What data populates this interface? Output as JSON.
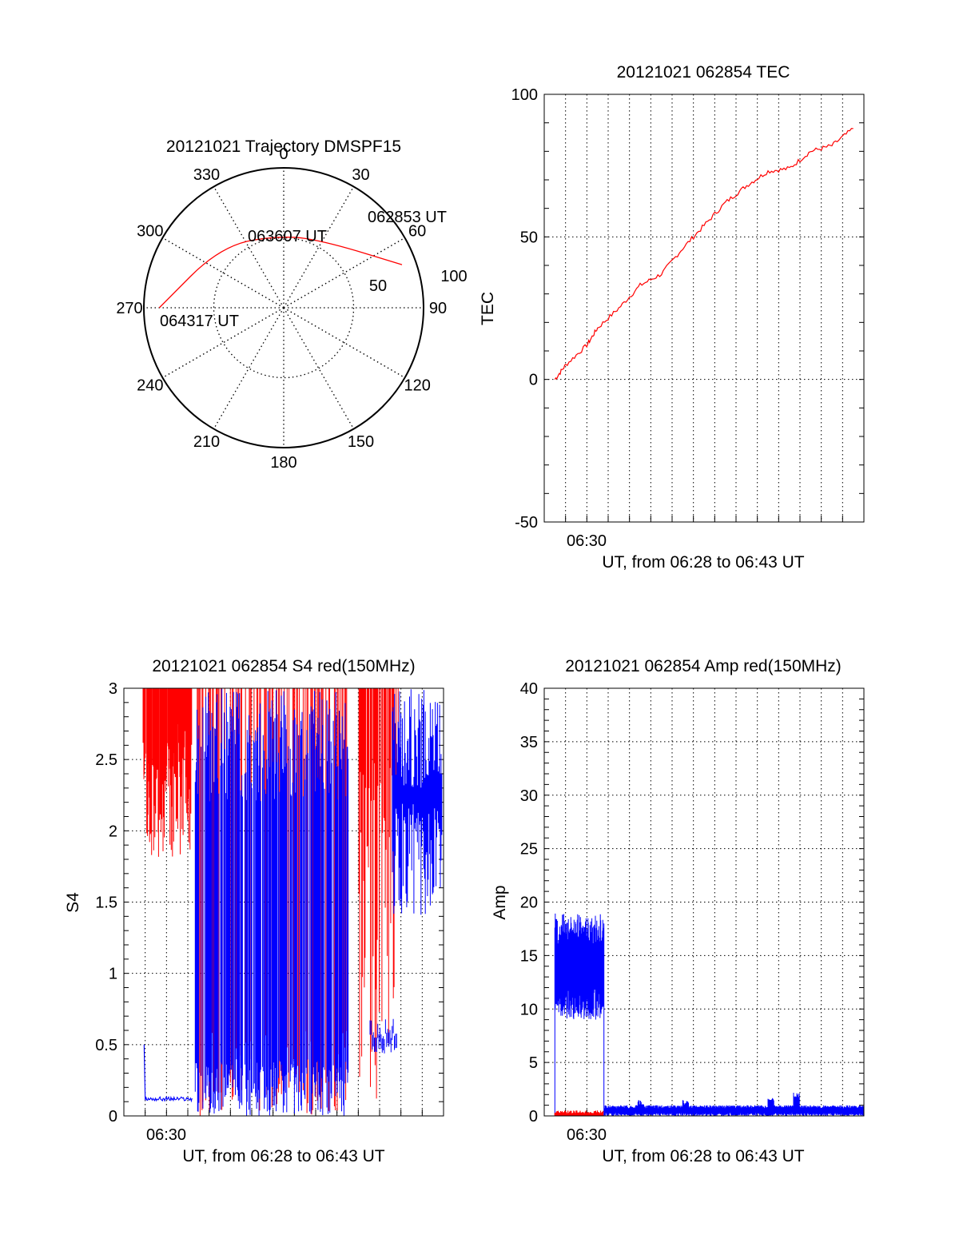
{
  "chart_data": [
    {
      "type": "polar",
      "title": "20121021 Trajectory DMSPF15",
      "azimuth_labels": [
        "0",
        "30",
        "60",
        "90",
        "120",
        "150",
        "180",
        "210",
        "240",
        "270",
        "300",
        "330"
      ],
      "radial_ticks": [
        "50",
        "100"
      ],
      "radial_max": 100,
      "grid": true,
      "series": [
        {
          "color": "#ff0000",
          "points": [
            {
              "az": 70,
              "r": 90
            },
            {
              "az": 35,
              "r": 57
            },
            {
              "az": 0,
              "r": 52
            },
            {
              "az": -45,
              "r": 63
            },
            {
              "az": -90,
              "r": 89
            }
          ]
        }
      ],
      "annotations": [
        {
          "text": "062853 UT",
          "az": 70,
          "r": 90
        },
        {
          "text": "063607 UT",
          "az": 0,
          "r": 52
        },
        {
          "text": "064317 UT",
          "az": -90,
          "r": 89
        }
      ]
    },
    {
      "type": "line",
      "title": "20121021 062854 TEC",
      "xlabel": "UT, from 06:28 to 06:43 UT",
      "ylabel": "TEC",
      "xlim": [
        0,
        15
      ],
      "ylim": [
        -50,
        100
      ],
      "yticks": [
        "-50",
        "0",
        "50",
        "100"
      ],
      "xticks": [
        {
          "x": 1.0,
          "label": "06:30"
        }
      ],
      "grid": true,
      "series": [
        {
          "color": "#ff0000",
          "points": [
            [
              0.5,
              0
            ],
            [
              1.0,
              5
            ],
            [
              2.0,
              12
            ],
            [
              2.5,
              18
            ],
            [
              3.5,
              25
            ],
            [
              4.5,
              33
            ],
            [
              5.5,
              37
            ],
            [
              6.5,
              46
            ],
            [
              7.5,
              54
            ],
            [
              8.5,
              62
            ],
            [
              9.5,
              68
            ],
            [
              10.5,
              73
            ],
            [
              11.5,
              74
            ],
            [
              12.5,
              80
            ],
            [
              13.5,
              82
            ],
            [
              14.5,
              88
            ]
          ]
        }
      ]
    },
    {
      "type": "line",
      "title": "20121021 062854 S4 red(150MHz)",
      "xlabel": "UT, from 06:28 to 06:43 UT",
      "ylabel": "S4",
      "xlim": [
        0,
        15
      ],
      "ylim": [
        0,
        3
      ],
      "yticks": [
        "0",
        "0.5",
        "1",
        "1.5",
        "2",
        "2.5",
        "3"
      ],
      "xticks": [
        {
          "x": 1.0,
          "label": "06:30"
        }
      ],
      "grid": true,
      "series": [
        {
          "name": "",
          "color": "#ff0000"
        },
        {
          "name": "",
          "color": "#0000ff"
        }
      ]
    },
    {
      "type": "line",
      "title": "20121021 062854 Amp red(150MHz)",
      "xlabel": "UT, from 06:28 to 06:43 UT",
      "ylabel": "Amp",
      "xlim": [
        0,
        15
      ],
      "ylim": [
        0,
        40
      ],
      "yticks": [
        "0",
        "5",
        "10",
        "15",
        "20",
        "25",
        "30",
        "35",
        "40"
      ],
      "xticks": [
        {
          "x": 1.0,
          "label": "06:30"
        }
      ],
      "grid": true,
      "series": [
        {
          "color": "#0000ff",
          "segments": [
            {
              "x0": 0.5,
              "x1": 2.8,
              "min": 9,
              "max": 19
            },
            {
              "x0": 2.8,
              "x1": 15,
              "min": 0,
              "max": 1
            }
          ],
          "bumps": [
            {
              "x": 4.4,
              "v": 1.5
            },
            {
              "x": 6.5,
              "v": 1.5
            },
            {
              "x": 10.5,
              "v": 1.8
            },
            {
              "x": 11.7,
              "v": 2.2
            }
          ]
        },
        {
          "color": "#ff0000",
          "segments": [
            {
              "x0": 0.5,
              "x1": 2.8,
              "min": 0,
              "max": 0.5
            }
          ]
        }
      ]
    }
  ]
}
